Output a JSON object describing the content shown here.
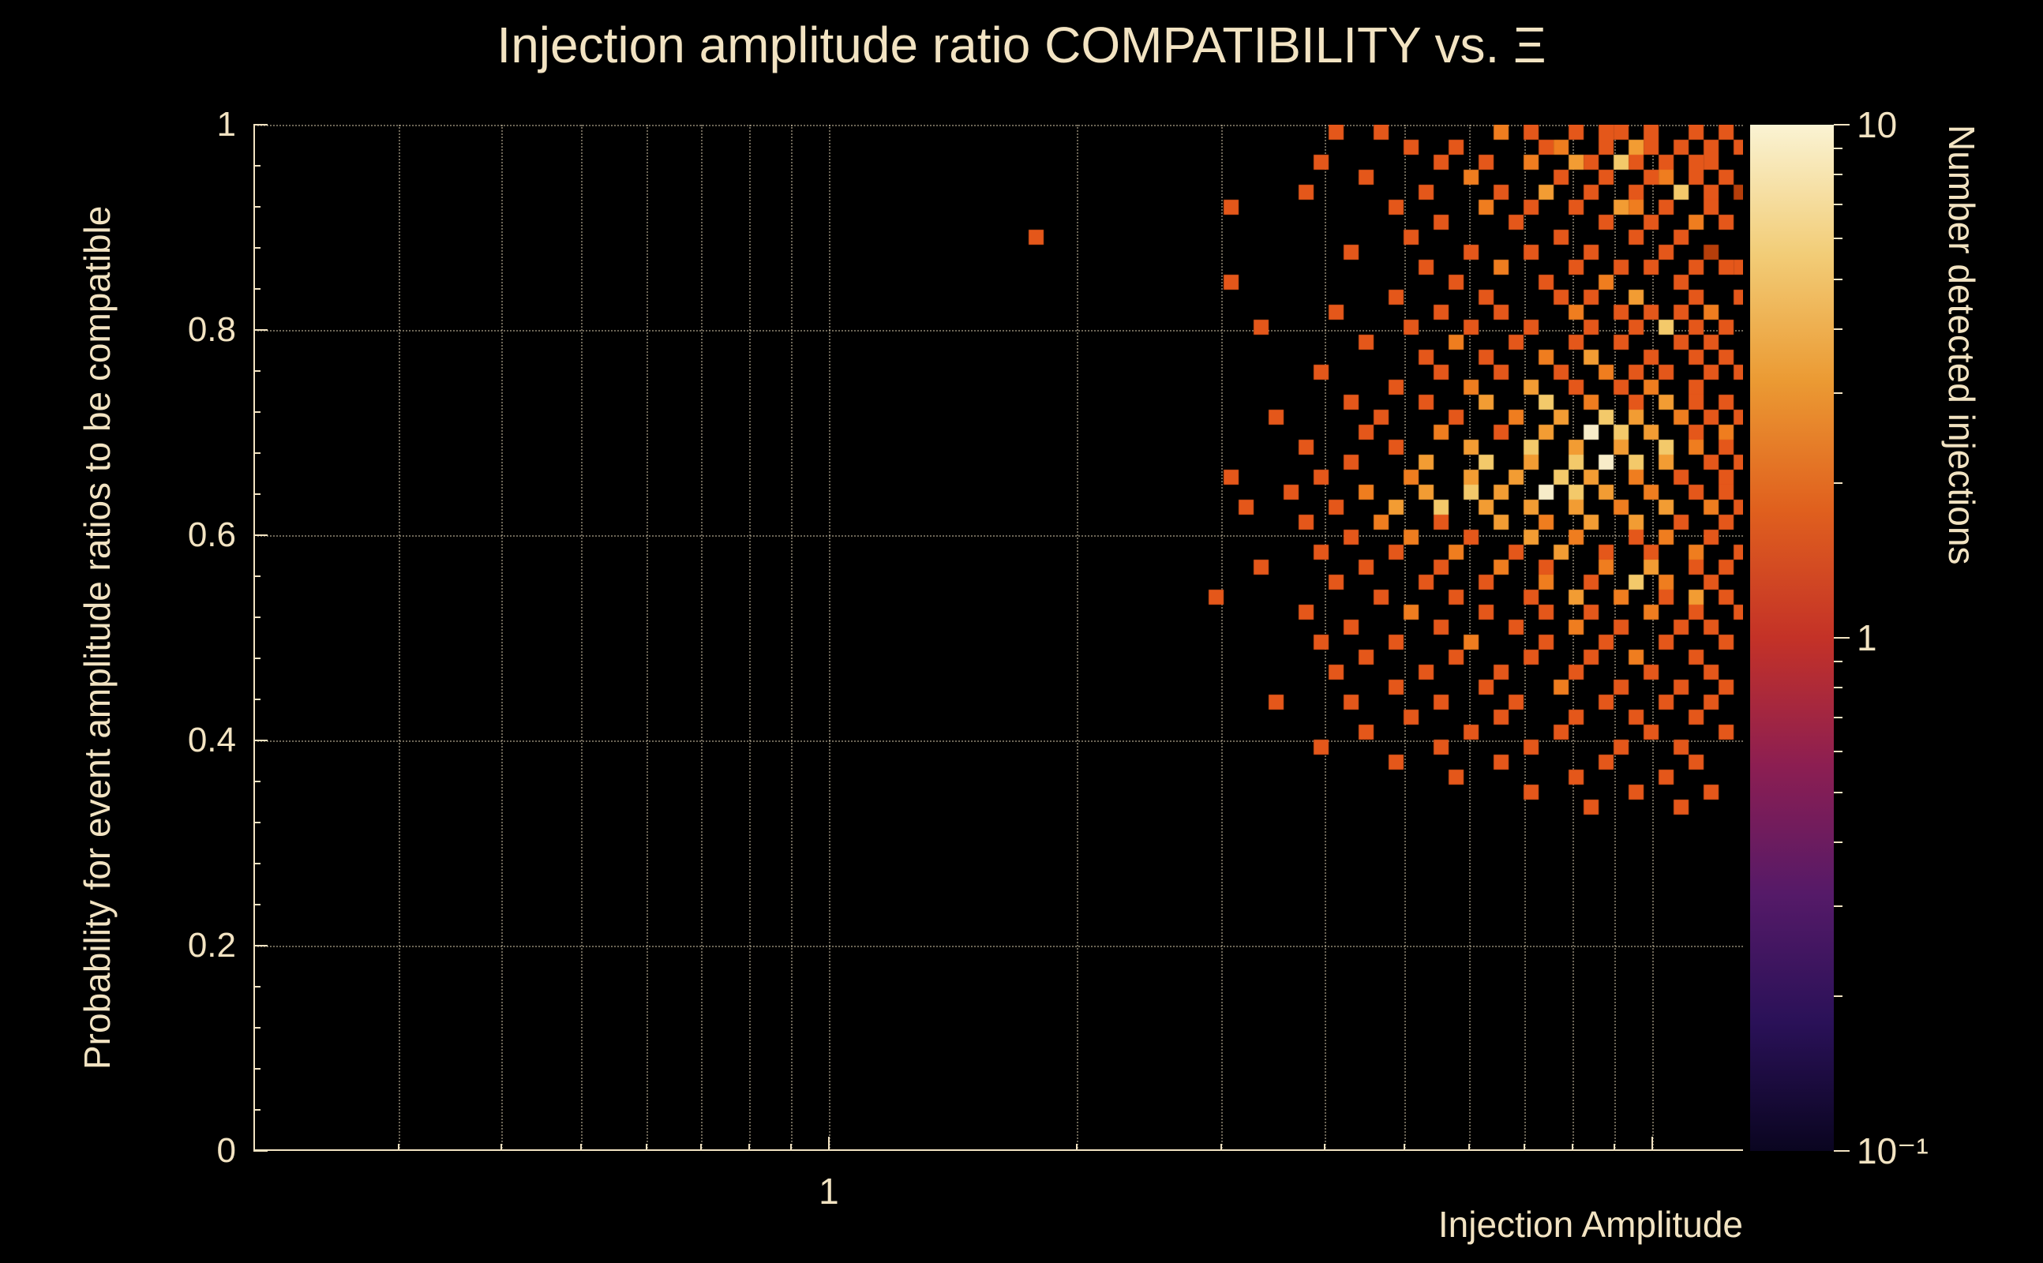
{
  "title": "Injection amplitude ratio COMPATIBILITY vs.  Ξ",
  "colors": {
    "background": "#000000",
    "axis": "#f2e3c2",
    "grid": "rgba(242,227,194,0.45)"
  },
  "chart_data": {
    "type": "heatmap",
    "title": "Injection amplitude ratio COMPATIBILITY vs.  Ξ",
    "xlabel": "Injection Amplitude",
    "ylabel": "Probability for event amplitude ratios to be compatible",
    "zlabel": "Number detected injections",
    "x_scale": "log",
    "x_range": [
      0.2,
      12.9
    ],
    "x_gridlines": [
      0.3,
      0.4,
      0.5,
      0.6,
      0.7,
      0.8,
      0.9,
      1,
      2,
      3,
      4,
      5,
      6,
      7,
      8,
      9,
      10
    ],
    "x_minor_ticks": [
      0.3,
      0.4,
      0.5,
      0.6,
      0.7,
      0.8,
      0.9,
      2,
      3,
      4,
      5,
      6,
      7,
      8,
      9
    ],
    "x_major_ticks": [
      1,
      10
    ],
    "x_tick_labels": [
      {
        "value": 1,
        "label": "1"
      }
    ],
    "y_range": [
      0,
      1
    ],
    "y_gridlines": [
      0.2,
      0.4,
      0.6,
      0.8,
      1
    ],
    "y_minor_step": 0.04,
    "y_ticks": [
      {
        "value": 0,
        "label": "0"
      },
      {
        "value": 0.2,
        "label": "0.2"
      },
      {
        "value": 0.4,
        "label": "0.4"
      },
      {
        "value": 0.6,
        "label": "0.6"
      },
      {
        "value": 0.8,
        "label": "0.8"
      },
      {
        "value": 1,
        "label": "1"
      }
    ],
    "z_scale": "log",
    "z_range": [
      0.1,
      10
    ],
    "z_tick_labels": [
      {
        "value": 10,
        "label": "10"
      },
      {
        "value": 1,
        "label": "1"
      },
      {
        "value": 0.1,
        "label": "10⁻¹"
      }
    ],
    "z_gradient_top_to_bottom": [
      "#faf3d3",
      "#f2cd78",
      "#eb9a33",
      "#e0601e",
      "#c43227",
      "#8c1e52",
      "#551a68",
      "#2a1158",
      "#0a0520"
    ],
    "palette": {
      "a": "#b63e0a",
      "b": "#e4571a",
      "c": "#ef7d1f",
      "d": "#f29c33",
      "e": "#f3c96a",
      "f": "#f7ecc8"
    },
    "bin_geometry": {
      "x_start_value": 1.749,
      "x_factor_per_cell": 1.04285,
      "y_start": 1.0,
      "y_step_per_cell": 0.014615
    },
    "bins_rows_top_to_bottom": [
      "....................b..b.......c.b..b.bb.b..b.b.",
      ".........................b..b.....bc..b.db.b.b.b",
      "...................b.......b..b..c..db.eb.b.bb..",
      "......................b......c.....b..b..bc.b.b.",
      "..................b.......b....b..d..b..b..e.b.a",
      ".............b..........b.....c..b..b..dc.b..b..",
      "...........................b....b.....b..b..c.b.",
      "b........................b.........b....b..b....",
      ".....................b.......b...b...b....b..a..",
      "..........................b....c....b..b.b..b.bb",
      ".............b..............b.....b...c....b....",
      "........................b.....b....b.b..d...b..b",
      "....................b......b...b....c..b.b.b.c..",
      "...............b.........b...b...b...b..b.e.b.b.",
      "......................b.....c...b...b..b...b.b..",
      "..........................b...b...c..d...b..b.b.",
      "...................b.......b...b...b..c.b.b..b.b",
      "........................b....c...d..b..b.c..b...",
      ".....................b....b...d...e..c..b.d.b.b.",
      "................b......b....b...c..d..e.d..c.b.b",
      "......................b....c...b..d..f.e.d..b.c.",
      "..................b.....b....d...e..d..d..e.c.b.",
      ".....................b....d...e..d..e.f.e.d..b.b",
      ".............b.....b.....c...d..d..e.d..c..b..b.",
      ".................b....c...d..e.d..f.e.d..c..b.b.",
      "..............b.....b...d..e..d..d..d..c..d..c.b",
      "..................b....c...b...d..c..d..d..b..b.",
      ".....................b...c...b...d..c...b.c..b..",
      "...................b....b...c...b..d..b..b..c..b",
      "...............b......b....b...c..b...c..d..b.b.",
      "....................b.....b...b...c..b..e.c..b..",
      "............b..........b....b....b..d..c..b.d.b.",
      "..................b......c....b...b..b...c..b..b",
      ".....................b.....b....b...c..b...b.b..",
      "...................b....b....c....b...b...b...b.",
      "......................b.....b....b...b..c...b...",
      "....................b.....b....b....b....b...b..",
      "........................b.....b....c...b...b..b.",
      "................b....b.....b....b.....b...b..b..",
      ".........................b.....b....b...b...b...",
      "......................b......b.....b.....b....b.",
      "...................b.......b.....b.....b...b....",
      "........................b......b......b.....b...",
      "............................b.......b.....b.....",
      ".................................b......b....b..",
      ".....................................b.....b...."
    ]
  }
}
